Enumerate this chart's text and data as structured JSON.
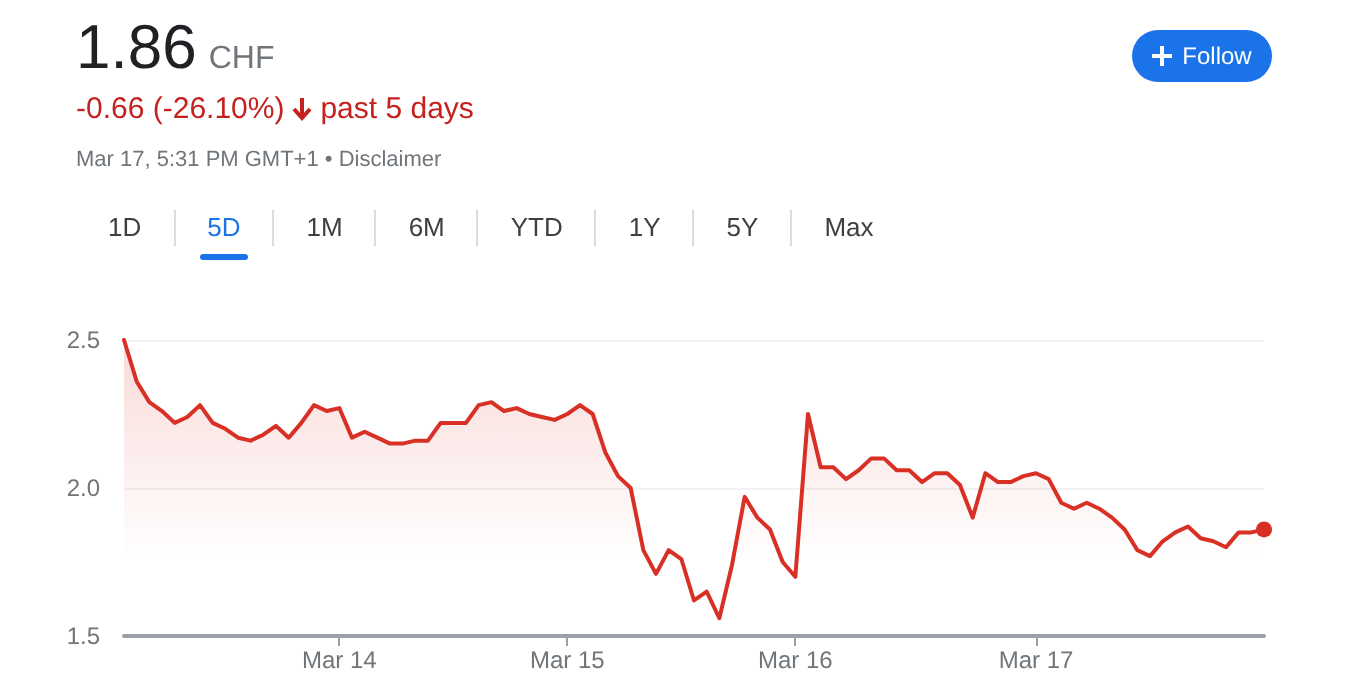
{
  "chart_data": {
    "type": "area",
    "title": "1.86",
    "subtitle": "CHF",
    "annotations": [
      "-0.66 (-26.10%)",
      "past 5 days",
      "Mar 17, 5:31 PM GMT+1 • Disclaimer",
      "1D",
      "5D",
      "1M",
      "6M",
      "YTD",
      "1Y",
      "5Y",
      "Max",
      "Follow"
    ],
    "categories": [
      null,
      null,
      null,
      null,
      null,
      null,
      null,
      null,
      null,
      null,
      null,
      null,
      null,
      null,
      null,
      null,
      null,
      "Mar 14",
      null,
      null,
      null,
      null,
      null,
      null,
      null,
      null,
      null,
      null,
      null,
      null,
      null,
      null,
      null,
      null,
      null,
      "Mar 15",
      null,
      null,
      null,
      null,
      null,
      null,
      null,
      null,
      null,
      null,
      null,
      null,
      null,
      null,
      null,
      null,
      null,
      "Mar 16",
      null,
      null,
      null,
      null,
      null,
      null,
      null,
      null,
      null,
      null,
      null,
      null,
      null,
      null,
      null,
      null,
      null,
      null,
      "Mar 17",
      null,
      null,
      null,
      null,
      null,
      null,
      null,
      null,
      null,
      null,
      null,
      null,
      null,
      null,
      null,
      null,
      null,
      null
    ],
    "series": [
      {
        "color": "#d93025",
        "values": [
          2.5,
          2.36,
          2.29,
          2.26,
          2.22,
          2.24,
          2.28,
          2.22,
          2.2,
          2.17,
          2.16,
          2.18,
          2.21,
          2.17,
          2.22,
          2.28,
          2.26,
          2.27,
          2.17,
          2.19,
          2.17,
          2.15,
          2.15,
          2.16,
          2.16,
          2.22,
          2.22,
          2.22,
          2.28,
          2.29,
          2.26,
          2.27,
          2.25,
          2.24,
          2.23,
          2.25,
          2.28,
          2.25,
          2.12,
          2.04,
          2.0,
          1.79,
          1.71,
          1.79,
          1.76,
          1.62,
          1.65,
          1.56,
          1.74,
          1.97,
          1.9,
          1.86,
          1.75,
          1.7,
          2.25,
          2.07,
          2.07,
          2.03,
          2.06,
          2.1,
          2.1,
          2.06,
          2.06,
          2.02,
          2.05,
          2.05,
          2.01,
          1.9,
          2.05,
          2.02,
          2.02,
          2.04,
          2.05,
          2.03,
          1.95,
          1.93,
          1.95,
          1.93,
          1.9,
          1.86,
          1.79,
          1.77,
          1.82,
          1.85,
          1.87,
          1.83,
          1.82,
          1.8,
          1.85,
          1.85,
          1.86
        ]
      }
    ],
    "ylim": [
      1.5,
      2.5
    ],
    "yticks": [
      1.5,
      {
        "value": 2,
        "label": "2.0"
      },
      2.5
    ],
    "grid": "y",
    "marker": "none",
    "line_style": "solid"
  }
}
